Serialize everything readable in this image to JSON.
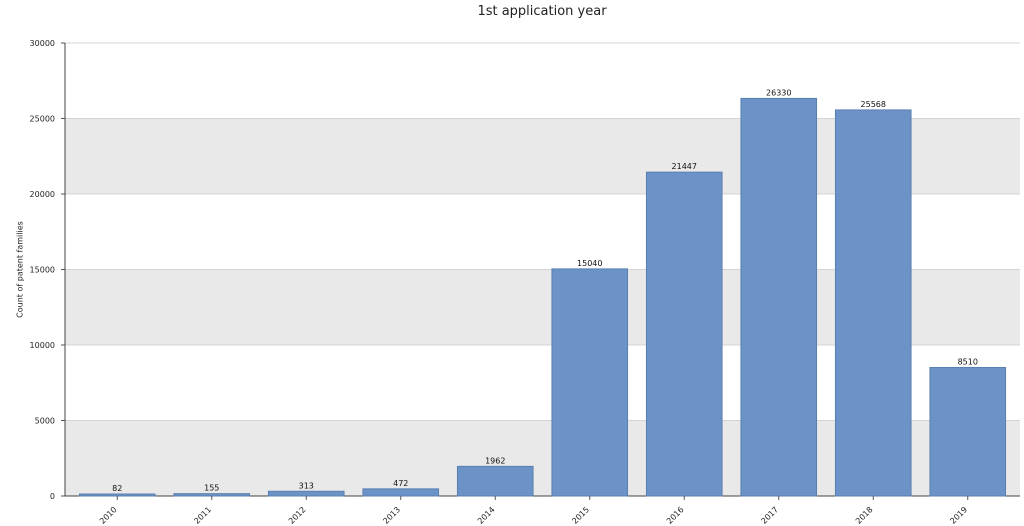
{
  "chart_data": {
    "type": "bar",
    "title": "1st application year",
    "xlabel": "",
    "ylabel": "Count of patent families",
    "categories": [
      "2010",
      "2011",
      "2012",
      "2013",
      "2014",
      "2015",
      "2016",
      "2017",
      "2018",
      "2019"
    ],
    "values": [
      82,
      155,
      313,
      472,
      1962,
      15040,
      21447,
      26330,
      25568,
      8510
    ],
    "ylim": [
      0,
      30000
    ],
    "yticks": [
      "0",
      "5000",
      "10000",
      "15000",
      "20000",
      "25000",
      "30000"
    ],
    "grid": "alternating horizontal bands",
    "legend": "none",
    "colors": {
      "bar_fill": "#6b93c8",
      "bar_stroke": "#5a7fb0",
      "band": "#e9e9e9"
    }
  }
}
